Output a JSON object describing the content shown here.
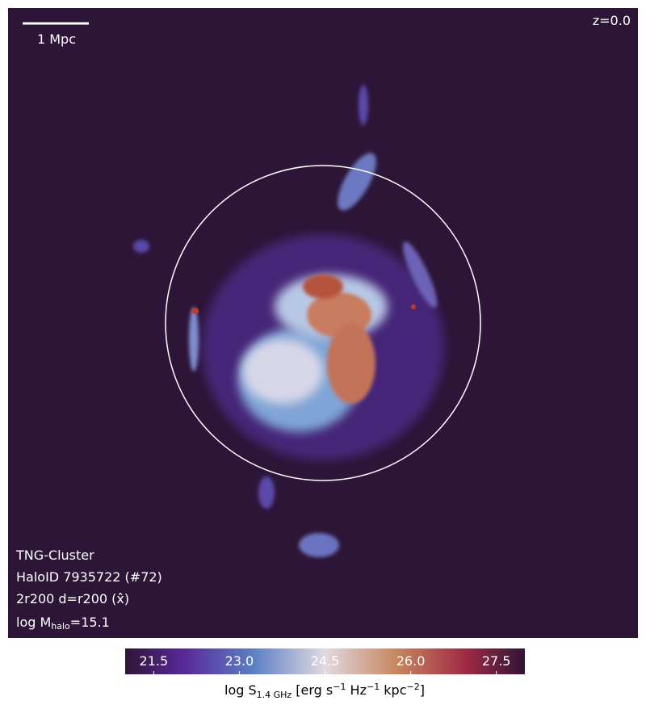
{
  "scale_bar": {
    "label": "1 Mpc"
  },
  "redshift": "z=0.0",
  "info": {
    "simulation": "TNG-Cluster",
    "halo": "HaloID 7935722 (#72)",
    "projection": "2r200 d=r200 (x̂)",
    "mass": [
      "log M",
      "halo",
      "=15.1"
    ]
  },
  "colorbar": {
    "range": [
      21,
      28
    ],
    "ticks": [
      {
        "value": 21.5,
        "label": "21.5"
      },
      {
        "value": 23,
        "label": "23.0"
      },
      {
        "value": 24.5,
        "label": "24.5"
      },
      {
        "value": 26,
        "label": "26.0"
      },
      {
        "value": 27.5,
        "label": "27.5"
      }
    ],
    "label": [
      "log S",
      "1.4 GHz",
      " [erg s",
      "−1",
      " Hz",
      "−1",
      " kpc",
      "−2",
      "]"
    ]
  }
}
